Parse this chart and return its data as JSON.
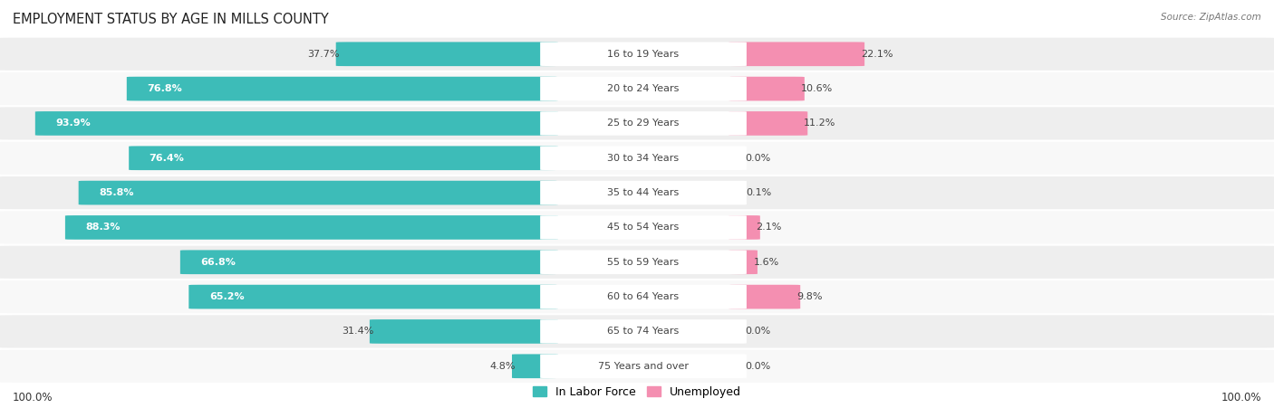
{
  "title": "EMPLOYMENT STATUS BY AGE IN MILLS COUNTY",
  "source": "Source: ZipAtlas.com",
  "categories": [
    "16 to 19 Years",
    "20 to 24 Years",
    "25 to 29 Years",
    "30 to 34 Years",
    "35 to 44 Years",
    "45 to 54 Years",
    "55 to 59 Years",
    "60 to 64 Years",
    "65 to 74 Years",
    "75 Years and over"
  ],
  "labor_force": [
    37.7,
    76.8,
    93.9,
    76.4,
    85.8,
    88.3,
    66.8,
    65.2,
    31.4,
    4.8
  ],
  "unemployed": [
    22.1,
    10.6,
    11.2,
    0.0,
    0.1,
    2.1,
    1.6,
    9.8,
    0.0,
    0.0
  ],
  "labor_color": "#3dbcb8",
  "unemployed_color": "#f48fb1",
  "row_bg_color": "#eeeeee",
  "row_bg_alt": "#f8f8f8",
  "label_bg_color": "#ffffff",
  "title_fontsize": 10.5,
  "label_fontsize": 8.5,
  "category_fontsize": 8.0,
  "value_fontsize": 8.0,
  "legend_fontsize": 9,
  "max_value": 100.0
}
